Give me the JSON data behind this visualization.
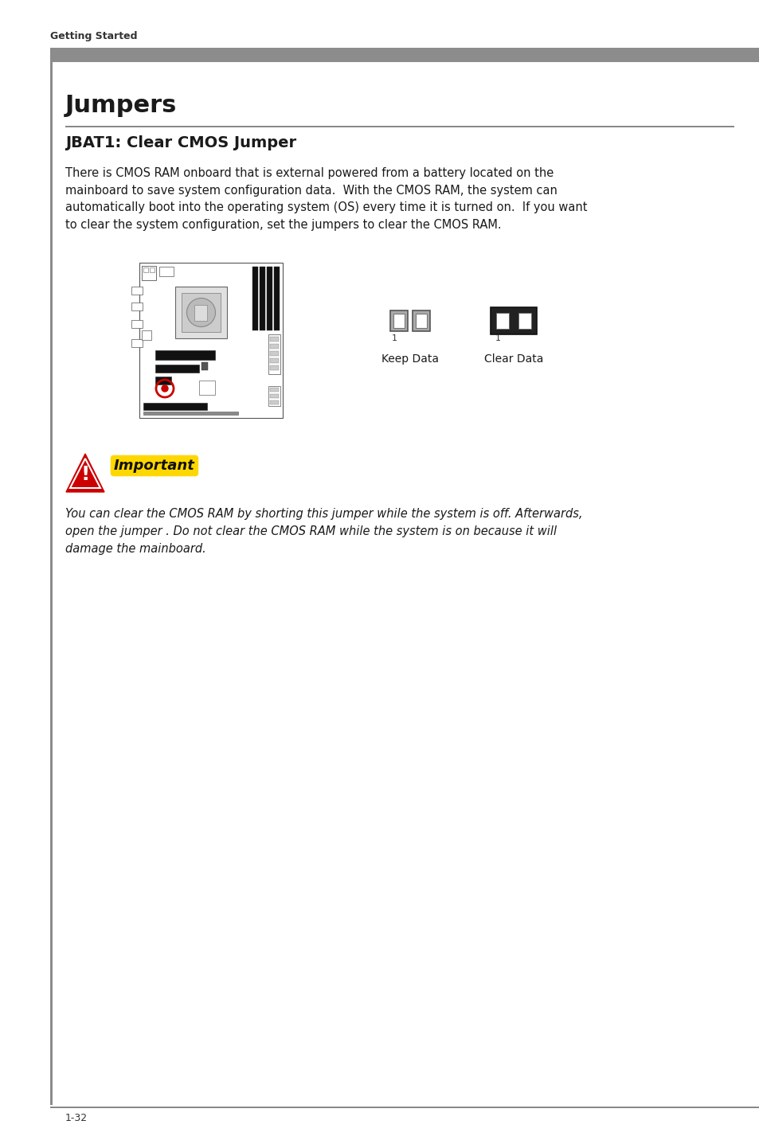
{
  "bg_color": "#ffffff",
  "header_bg": "#8c8c8c",
  "header_text": "Getting Started",
  "header_text_color": "#ffffff",
  "left_bar_color": "#8c8c8c",
  "section_title": "Jumpers",
  "subsection_title": "JBAT1: Clear CMOS Jumper",
  "body_text": "There is CMOS RAM onboard that is external powered from a battery located on the\nmainboard to save system configuration data.  With the CMOS RAM, the system can\nautomatically boot into the operating system (OS) every time it is turned on.  If you want\nto clear the system configuration, set the jumpers to clear the CMOS RAM.",
  "keep_data_label": "Keep Data",
  "clear_data_label": "Clear Data",
  "important_label": "Important",
  "important_text": "You can clear the CMOS RAM by shorting this jumper while the system is off. Afterwards,\nopen the jumper . Do not clear the CMOS RAM while the system is on because it will\ndamage the mainboard.",
  "page_number": "1-32"
}
